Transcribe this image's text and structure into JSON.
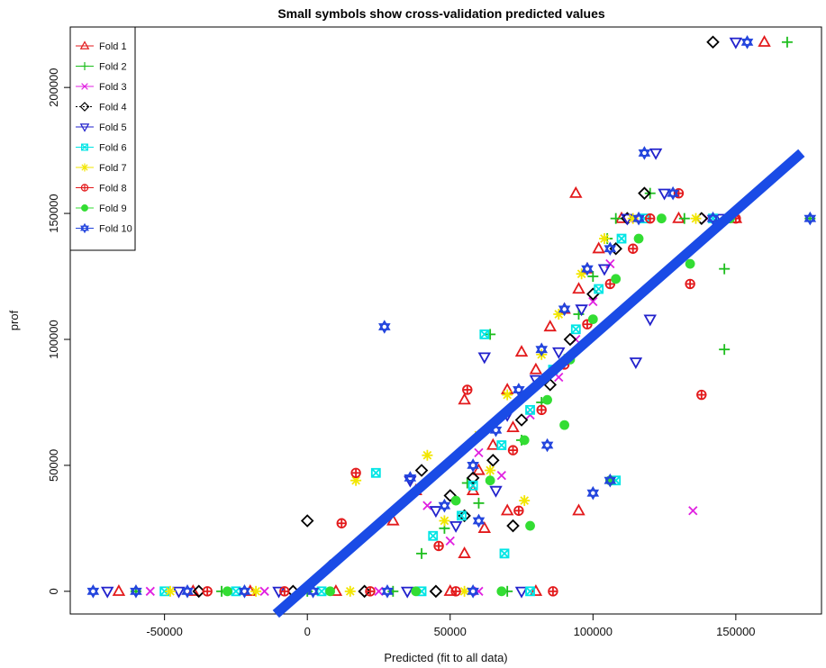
{
  "chart_data": {
    "type": "scatter",
    "title": "Small symbols show cross-validation predicted values",
    "xlabel": "Predicted (fit to all data)",
    "ylabel": "prof",
    "xlim": [
      -83000,
      180000
    ],
    "ylim": [
      -9000,
      224000
    ],
    "xticks": [
      -50000,
      0,
      50000,
      100000,
      150000
    ],
    "yticks": [
      0,
      50000,
      100000,
      150000,
      200000
    ],
    "xtick_labels": [
      "-50000",
      "0",
      "50000",
      "100000",
      "150000"
    ],
    "ytick_labels": [
      "0",
      "50000",
      "100000",
      "150000",
      "200000"
    ],
    "grid": false,
    "legend_position": "top-left",
    "fit_line": {
      "name": "",
      "color": "#1a4be6",
      "x": [
        -11000,
        173000
      ],
      "y": [
        -9000,
        174000
      ]
    },
    "series": [
      {
        "name": "Fold 1",
        "marker": "triangle-up",
        "color": "#e31a1c",
        "points": [
          [
            -66000,
            0
          ],
          [
            -40000,
            0
          ],
          [
            -20000,
            0
          ],
          [
            10000,
            0
          ],
          [
            50000,
            0
          ],
          [
            80000,
            0
          ],
          [
            55000,
            15000
          ],
          [
            62000,
            25000
          ],
          [
            70000,
            32000
          ],
          [
            58000,
            40000
          ],
          [
            60000,
            48000
          ],
          [
            65000,
            58000
          ],
          [
            72000,
            65000
          ],
          [
            55000,
            76000
          ],
          [
            70000,
            80000
          ],
          [
            80000,
            88000
          ],
          [
            75000,
            95000
          ],
          [
            85000,
            105000
          ],
          [
            90000,
            112000
          ],
          [
            95000,
            120000
          ],
          [
            98000,
            128000
          ],
          [
            102000,
            136000
          ],
          [
            94000,
            158000
          ],
          [
            110000,
            148000
          ],
          [
            130000,
            148000
          ],
          [
            150000,
            148000
          ],
          [
            160000,
            218000
          ],
          [
            95000,
            32000
          ],
          [
            38000,
            40000
          ],
          [
            30000,
            28000
          ]
        ]
      },
      {
        "name": "Fold 2",
        "marker": "plus",
        "color": "#1dbe1d",
        "points": [
          [
            -60000,
            0
          ],
          [
            -30000,
            0
          ],
          [
            0,
            0
          ],
          [
            30000,
            0
          ],
          [
            70000,
            0
          ],
          [
            146000,
            128000
          ],
          [
            146000,
            96000
          ],
          [
            168000,
            218000
          ],
          [
            64000,
            102000
          ],
          [
            48000,
            25000
          ],
          [
            56000,
            43000
          ],
          [
            75000,
            60000
          ],
          [
            82000,
            75000
          ],
          [
            90000,
            92000
          ],
          [
            95000,
            110000
          ],
          [
            100000,
            125000
          ],
          [
            105000,
            140000
          ],
          [
            108000,
            148000
          ],
          [
            132000,
            148000
          ],
          [
            176000,
            148000
          ],
          [
            120000,
            158000
          ],
          [
            40000,
            15000
          ],
          [
            60000,
            35000
          ]
        ]
      },
      {
        "name": "Fold 3",
        "marker": "x",
        "color": "#e020e0",
        "points": [
          [
            -55000,
            0
          ],
          [
            -15000,
            0
          ],
          [
            25000,
            0
          ],
          [
            60000,
            0
          ],
          [
            135000,
            32000
          ],
          [
            42000,
            34000
          ],
          [
            60000,
            55000
          ],
          [
            78000,
            70000
          ],
          [
            88000,
            85000
          ],
          [
            94000,
            100000
          ],
          [
            100000,
            115000
          ],
          [
            106000,
            130000
          ],
          [
            115000,
            148000
          ],
          [
            140000,
            148000
          ],
          [
            50000,
            20000
          ],
          [
            68000,
            46000
          ]
        ]
      },
      {
        "name": "Fold 4",
        "marker": "diamond",
        "color": "#000000",
        "points": [
          [
            -38000,
            0
          ],
          [
            -5000,
            0
          ],
          [
            20000,
            0
          ],
          [
            45000,
            0
          ],
          [
            142000,
            218000
          ],
          [
            0,
            28000
          ],
          [
            8000,
            10000
          ],
          [
            40000,
            48000
          ],
          [
            50000,
            38000
          ],
          [
            55000,
            30000
          ],
          [
            65000,
            52000
          ],
          [
            75000,
            68000
          ],
          [
            85000,
            82000
          ],
          [
            92000,
            100000
          ],
          [
            100000,
            118000
          ],
          [
            108000,
            136000
          ],
          [
            112000,
            148000
          ],
          [
            138000,
            148000
          ],
          [
            118000,
            158000
          ],
          [
            72000,
            26000
          ],
          [
            58000,
            45000
          ]
        ]
      },
      {
        "name": "Fold 5",
        "marker": "triangle-down",
        "color": "#2222cc",
        "points": [
          [
            -70000,
            0
          ],
          [
            -45000,
            0
          ],
          [
            -10000,
            0
          ],
          [
            35000,
            0
          ],
          [
            75000,
            0
          ],
          [
            150000,
            218000
          ],
          [
            122000,
            174000
          ],
          [
            120000,
            108000
          ],
          [
            115000,
            91000
          ],
          [
            36000,
            44000
          ],
          [
            45000,
            32000
          ],
          [
            62000,
            93000
          ],
          [
            70000,
            70000
          ],
          [
            80000,
            84000
          ],
          [
            88000,
            95000
          ],
          [
            96000,
            112000
          ],
          [
            104000,
            128000
          ],
          [
            112000,
            148000
          ],
          [
            145000,
            148000
          ],
          [
            125000,
            158000
          ],
          [
            52000,
            26000
          ],
          [
            66000,
            40000
          ]
        ]
      },
      {
        "name": "Fold 6",
        "marker": "square-cross",
        "color": "#00e5e5",
        "points": [
          [
            -50000,
            0
          ],
          [
            -25000,
            0
          ],
          [
            5000,
            0
          ],
          [
            40000,
            0
          ],
          [
            78000,
            0
          ],
          [
            24000,
            47000
          ],
          [
            62000,
            102000
          ],
          [
            69000,
            15000
          ],
          [
            44000,
            22000
          ],
          [
            58000,
            42000
          ],
          [
            68000,
            58000
          ],
          [
            78000,
            72000
          ],
          [
            86000,
            88000
          ],
          [
            94000,
            104000
          ],
          [
            102000,
            120000
          ],
          [
            110000,
            140000
          ],
          [
            118000,
            148000
          ],
          [
            142000,
            148000
          ],
          [
            108000,
            44000
          ],
          [
            54000,
            30000
          ]
        ]
      },
      {
        "name": "Fold 7",
        "marker": "asterisk",
        "color": "#f2e600",
        "points": [
          [
            -48000,
            0
          ],
          [
            -18000,
            0
          ],
          [
            15000,
            0
          ],
          [
            55000,
            0
          ],
          [
            17000,
            44000
          ],
          [
            42000,
            54000
          ],
          [
            60000,
            62000
          ],
          [
            70000,
            78000
          ],
          [
            82000,
            94000
          ],
          [
            88000,
            110000
          ],
          [
            96000,
            126000
          ],
          [
            104000,
            140000
          ],
          [
            114000,
            148000
          ],
          [
            136000,
            148000
          ],
          [
            48000,
            28000
          ],
          [
            64000,
            48000
          ],
          [
            76000,
            36000
          ]
        ]
      },
      {
        "name": "Fold 8",
        "marker": "circle-plus",
        "color": "#e31a1c",
        "points": [
          [
            -35000,
            0
          ],
          [
            -8000,
            0
          ],
          [
            22000,
            0
          ],
          [
            52000,
            0
          ],
          [
            86000,
            0
          ],
          [
            17000,
            47000
          ],
          [
            12000,
            27000
          ],
          [
            138000,
            78000
          ],
          [
            134000,
            122000
          ],
          [
            56000,
            80000
          ],
          [
            72000,
            56000
          ],
          [
            82000,
            72000
          ],
          [
            90000,
            90000
          ],
          [
            98000,
            106000
          ],
          [
            106000,
            122000
          ],
          [
            114000,
            136000
          ],
          [
            120000,
            148000
          ],
          [
            150000,
            148000
          ],
          [
            130000,
            158000
          ],
          [
            46000,
            18000
          ],
          [
            74000,
            32000
          ]
        ]
      },
      {
        "name": "Fold 9",
        "marker": "circle",
        "color": "#33dd33",
        "points": [
          [
            -28000,
            0
          ],
          [
            8000,
            0
          ],
          [
            38000,
            0
          ],
          [
            68000,
            0
          ],
          [
            52000,
            36000
          ],
          [
            64000,
            44000
          ],
          [
            76000,
            60000
          ],
          [
            84000,
            76000
          ],
          [
            92000,
            92000
          ],
          [
            100000,
            108000
          ],
          [
            108000,
            124000
          ],
          [
            116000,
            140000
          ],
          [
            124000,
            148000
          ],
          [
            148000,
            148000
          ],
          [
            134000,
            130000
          ],
          [
            106000,
            44000
          ],
          [
            78000,
            26000
          ],
          [
            90000,
            66000
          ]
        ]
      },
      {
        "name": "Fold 10",
        "marker": "star-of-david",
        "color": "#2244dd",
        "points": [
          [
            -75000,
            0
          ],
          [
            -60000,
            0
          ],
          [
            -42000,
            0
          ],
          [
            -22000,
            0
          ],
          [
            2000,
            0
          ],
          [
            28000,
            0
          ],
          [
            58000,
            0
          ],
          [
            27000,
            105000
          ],
          [
            118000,
            174000
          ],
          [
            154000,
            218000
          ],
          [
            106000,
            44000
          ],
          [
            100000,
            39000
          ],
          [
            36000,
            45000
          ],
          [
            48000,
            34000
          ],
          [
            58000,
            50000
          ],
          [
            66000,
            64000
          ],
          [
            74000,
            80000
          ],
          [
            82000,
            96000
          ],
          [
            90000,
            112000
          ],
          [
            98000,
            128000
          ],
          [
            106000,
            136000
          ],
          [
            116000,
            148000
          ],
          [
            142000,
            148000
          ],
          [
            176000,
            148000
          ],
          [
            128000,
            158000
          ],
          [
            60000,
            28000
          ],
          [
            84000,
            58000
          ]
        ]
      }
    ]
  }
}
